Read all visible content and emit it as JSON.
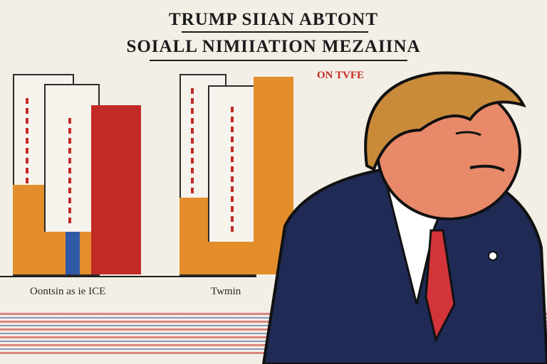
{
  "title_line1": "TRUMP SIIAN ABTONT",
  "title_line2": "SOIALL NIMIIATION MEZAIINA",
  "badge": "ON TVFE",
  "label_left": "Oontsin as ie ICE",
  "label_right": "Twmin",
  "colors": {
    "orange": "#e48d2b",
    "red": "#c22a25",
    "blue": "#2f5aa8",
    "navy": "#1f2a55",
    "background": "#f3efe6"
  }
}
